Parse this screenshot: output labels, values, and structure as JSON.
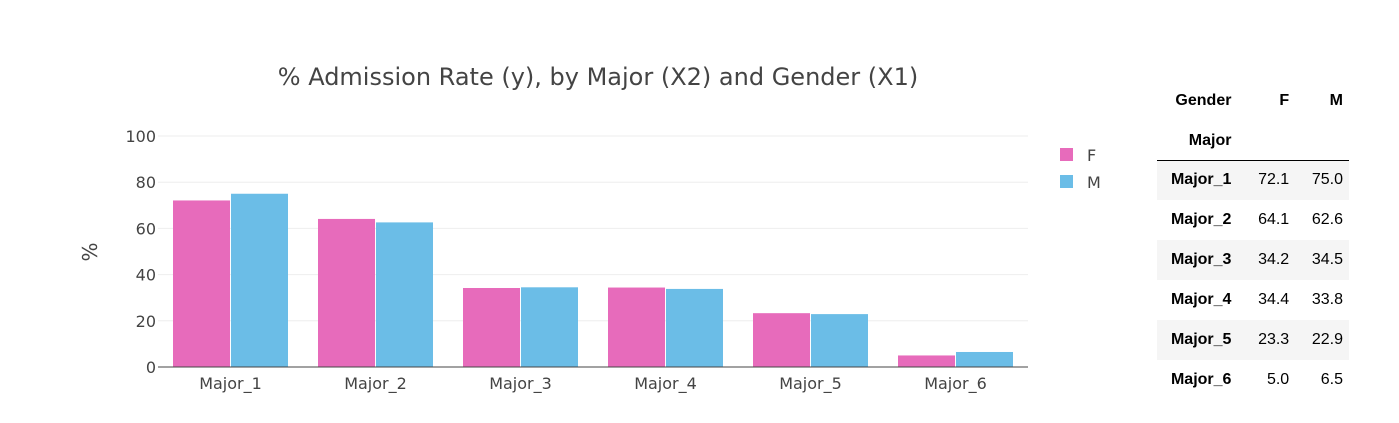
{
  "chart_data": {
    "type": "bar",
    "title": "% Admission Rate (y), by Major (X2) and Gender (X1)",
    "xlabel": "",
    "ylabel": "%",
    "ylim": [
      0,
      100
    ],
    "yticks": [
      0,
      20,
      40,
      60,
      80,
      100
    ],
    "grid": true,
    "legend_placement": "top-right",
    "categories": [
      "Major_1",
      "Major_2",
      "Major_3",
      "Major_4",
      "Major_5",
      "Major_6"
    ],
    "series": [
      {
        "name": "F",
        "color": "#e76bbb",
        "values": [
          72.1,
          64.1,
          34.2,
          34.4,
          23.3,
          5.0
        ]
      },
      {
        "name": "M",
        "color": "#6bbde7",
        "values": [
          75.0,
          62.6,
          34.5,
          33.8,
          22.9,
          6.5
        ]
      }
    ]
  },
  "table": {
    "header_label": "Gender",
    "columns": [
      "F",
      "M"
    ],
    "index_label": "Major",
    "rows": [
      {
        "label": "Major_1",
        "values": [
          "72.1",
          "75.0"
        ]
      },
      {
        "label": "Major_2",
        "values": [
          "64.1",
          "62.6"
        ]
      },
      {
        "label": "Major_3",
        "values": [
          "34.2",
          "34.5"
        ]
      },
      {
        "label": "Major_4",
        "values": [
          "34.4",
          "33.8"
        ]
      },
      {
        "label": "Major_5",
        "values": [
          "23.3",
          "22.9"
        ]
      },
      {
        "label": "Major_6",
        "values": [
          "5.0",
          "6.5"
        ]
      }
    ]
  }
}
